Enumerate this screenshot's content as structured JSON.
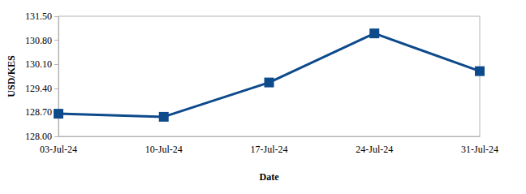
{
  "chart_data": {
    "type": "line",
    "x_label": "Date",
    "y_label": "USD/KES",
    "categories": [
      "03-Jul-24",
      "10-Jul-24",
      "17-Jul-24",
      "24-Jul-24",
      "31-Jul-24"
    ],
    "values": [
      128.66,
      128.57,
      129.57,
      131.0,
      129.9
    ],
    "color": "#0d4a8c",
    "marker": "square",
    "ylim": [
      128,
      131.5
    ],
    "yticks": [
      {
        "value": 128,
        "label": "128.00"
      },
      {
        "value": 128.7,
        "label": "128.70"
      },
      {
        "value": 129.4,
        "label": "129.40"
      },
      {
        "value": 130.1,
        "label": "130.10"
      },
      {
        "value": 130.8,
        "label": "130.80"
      },
      {
        "value": 131.5,
        "label": "131.50"
      }
    ],
    "grid": false
  }
}
